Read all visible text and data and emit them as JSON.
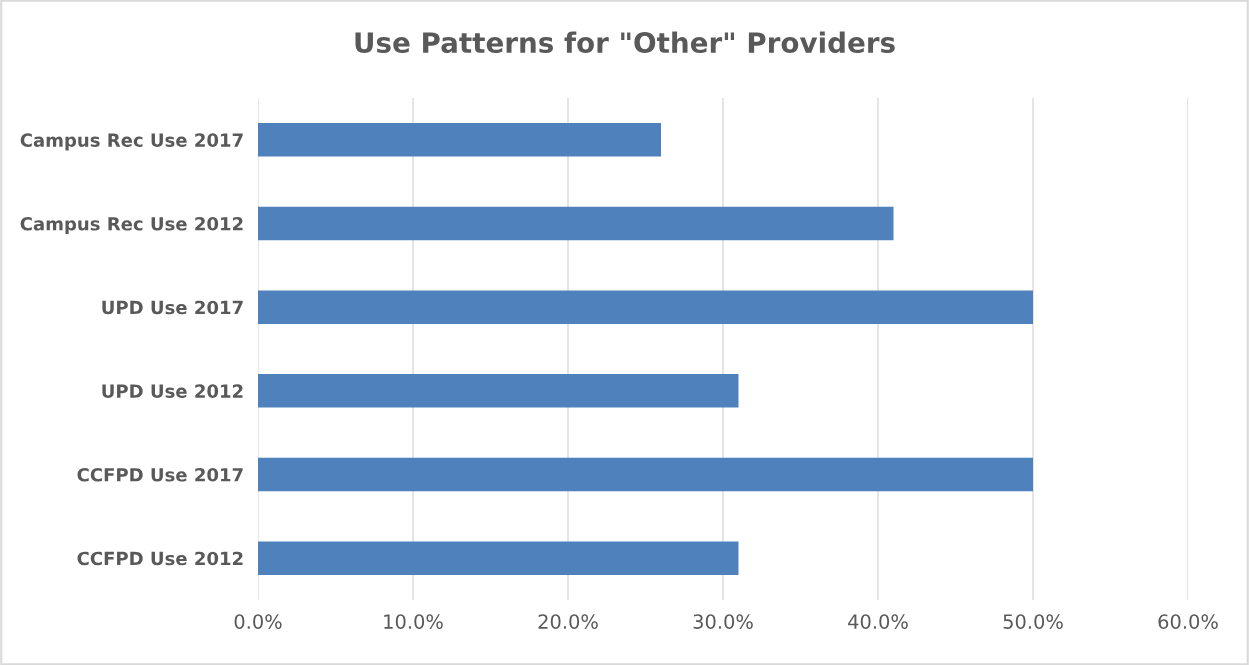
{
  "chart_data": {
    "type": "bar",
    "orientation": "horizontal",
    "title": "Use Patterns for \"Other\" Providers",
    "categories": [
      "Campus Rec Use 2017",
      "Campus Rec Use 2012",
      "UPD Use 2017",
      "UPD Use 2012",
      "CCFPD Use 2017",
      "CCFPD Use 2012"
    ],
    "values": [
      26,
      41,
      50,
      31,
      50,
      31
    ],
    "color": "#4f81bd",
    "xlim": [
      0,
      60
    ],
    "xticks": [
      {
        "value": 0,
        "label": "0.0%"
      },
      {
        "value": 10,
        "label": "10.0%"
      },
      {
        "value": 20,
        "label": "20.0%"
      },
      {
        "value": 30,
        "label": "30.0%"
      },
      {
        "value": 40,
        "label": "40.0%"
      },
      {
        "value": 50,
        "label": "50.0%"
      },
      {
        "value": 60,
        "label": "60.0%"
      }
    ],
    "grid": "x",
    "legend": false
  }
}
